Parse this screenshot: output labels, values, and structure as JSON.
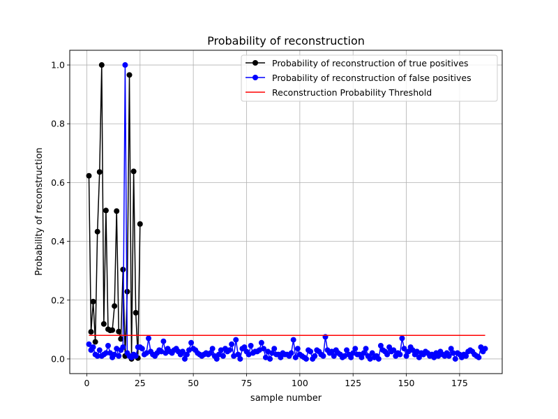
{
  "chart_data": {
    "type": "line",
    "title": "Probability of reconstruction",
    "xlabel": "sample number",
    "ylabel": "Probability of reconstruction",
    "xlim": [
      -8,
      195
    ],
    "ylim": [
      -0.05,
      1.05
    ],
    "xticks": [
      "0",
      "25",
      "50",
      "75",
      "100",
      "125",
      "150",
      "175"
    ],
    "yticks": [
      "0.0",
      "0.2",
      "0.4",
      "0.6",
      "0.8",
      "1.0"
    ],
    "grid": true,
    "legend_position": "top-right",
    "series": [
      {
        "name": "Probability of reconstruction of true positives",
        "color": "#000000",
        "marker": "circle",
        "x": [
          1,
          2,
          3,
          4,
          5,
          6,
          7,
          8,
          9,
          10,
          11,
          12,
          13,
          14,
          15,
          16,
          17,
          18,
          19,
          20,
          21,
          22,
          23,
          24,
          25
        ],
        "y": [
          0.623,
          0.092,
          0.195,
          0.058,
          0.433,
          0.636,
          1.0,
          0.119,
          0.505,
          0.101,
          0.097,
          0.098,
          0.18,
          0.503,
          0.093,
          0.068,
          0.304,
          0.01,
          0.229,
          0.966,
          0.0,
          0.638,
          0.157,
          0.003,
          0.459
        ]
      },
      {
        "name": "Probability of reconstruction of false positives",
        "color": "#0000ff",
        "marker": "circle",
        "x": [
          1,
          2,
          3,
          4,
          5,
          6,
          7,
          8,
          9,
          10,
          11,
          12,
          13,
          14,
          15,
          16,
          17,
          18,
          19,
          20,
          21,
          22,
          23,
          24,
          25,
          26,
          27,
          28,
          29,
          30,
          31,
          32,
          33,
          34,
          35,
          36,
          37,
          38,
          39,
          40,
          41,
          42,
          43,
          44,
          45,
          46,
          47,
          48,
          49,
          50,
          51,
          52,
          53,
          54,
          55,
          56,
          57,
          58,
          59,
          60,
          61,
          62,
          63,
          64,
          65,
          66,
          67,
          68,
          69,
          70,
          71,
          72,
          73,
          74,
          75,
          76,
          77,
          78,
          79,
          80,
          81,
          82,
          83,
          84,
          85,
          86,
          87,
          88,
          89,
          90,
          91,
          92,
          93,
          94,
          95,
          96,
          97,
          98,
          99,
          100,
          101,
          102,
          103,
          104,
          105,
          106,
          107,
          108,
          109,
          110,
          111,
          112,
          113,
          114,
          115,
          116,
          117,
          118,
          119,
          120,
          121,
          122,
          123,
          124,
          125,
          126,
          127,
          128,
          129,
          130,
          131,
          132,
          133,
          134,
          135,
          136,
          137,
          138,
          139,
          140,
          141,
          142,
          143,
          144,
          145,
          146,
          147,
          148,
          149,
          150,
          151,
          152,
          153,
          154,
          155,
          156,
          157,
          158,
          159,
          160,
          161,
          162,
          163,
          164,
          165,
          166,
          167,
          168,
          169,
          170,
          171,
          172,
          173,
          174,
          175,
          176,
          177,
          178,
          179,
          180,
          181,
          182,
          183,
          184,
          185,
          186,
          187
        ],
        "y": [
          0.05,
          0.03,
          0.04,
          0.015,
          0.01,
          0.03,
          0.01,
          0.015,
          0.02,
          0.045,
          0.02,
          0.005,
          0.015,
          0.035,
          0.01,
          0.03,
          0.04,
          1.0,
          0.02,
          0.01,
          0.005,
          0.015,
          0.01,
          0.04,
          0.04,
          0.035,
          0.015,
          0.02,
          0.07,
          0.025,
          0.015,
          0.01,
          0.02,
          0.03,
          0.025,
          0.06,
          0.02,
          0.035,
          0.025,
          0.02,
          0.03,
          0.035,
          0.025,
          0.015,
          0.025,
          0.0,
          0.015,
          0.03,
          0.055,
          0.035,
          0.03,
          0.02,
          0.015,
          0.01,
          0.015,
          0.02,
          0.015,
          0.02,
          0.035,
          0.01,
          0.0,
          0.015,
          0.03,
          0.01,
          0.035,
          0.025,
          0.03,
          0.05,
          0.01,
          0.065,
          0.015,
          0.0,
          0.035,
          0.04,
          0.025,
          0.015,
          0.045,
          0.02,
          0.025,
          0.025,
          0.03,
          0.055,
          0.035,
          0.005,
          0.025,
          0.0,
          0.02,
          0.035,
          0.015,
          0.015,
          0.005,
          0.02,
          0.015,
          0.015,
          0.01,
          0.02,
          0.065,
          0.005,
          0.035,
          0.015,
          0.01,
          0.005,
          0.0,
          0.03,
          0.025,
          0.0,
          0.01,
          0.03,
          0.025,
          0.015,
          0.01,
          0.075,
          0.03,
          0.02,
          0.025,
          0.01,
          0.03,
          0.02,
          0.015,
          0.005,
          0.01,
          0.03,
          0.015,
          0.005,
          0.02,
          0.035,
          0.015,
          0.015,
          0.005,
          0.02,
          0.035,
          0.01,
          0.0,
          0.02,
          0.005,
          0.01,
          0.0,
          0.045,
          0.03,
          0.025,
          0.015,
          0.04,
          0.025,
          0.03,
          0.01,
          0.02,
          0.015,
          0.07,
          0.035,
          0.01,
          0.025,
          0.04,
          0.03,
          0.015,
          0.025,
          0.005,
          0.02,
          0.015,
          0.025,
          0.02,
          0.01,
          0.015,
          0.005,
          0.02,
          0.01,
          0.025,
          0.015,
          0.01,
          0.02,
          0.01,
          0.035,
          0.02,
          0.0,
          0.02,
          0.015,
          0.005,
          0.015,
          0.01,
          0.025,
          0.03,
          0.025,
          0.015,
          0.01,
          0.005,
          0.04,
          0.025,
          0.035
        ]
      },
      {
        "name": "Reconstruction Probability Threshold",
        "color": "#ff0000",
        "marker": "none",
        "x": [
          1,
          187
        ],
        "y": [
          0.08,
          0.08
        ]
      }
    ]
  }
}
